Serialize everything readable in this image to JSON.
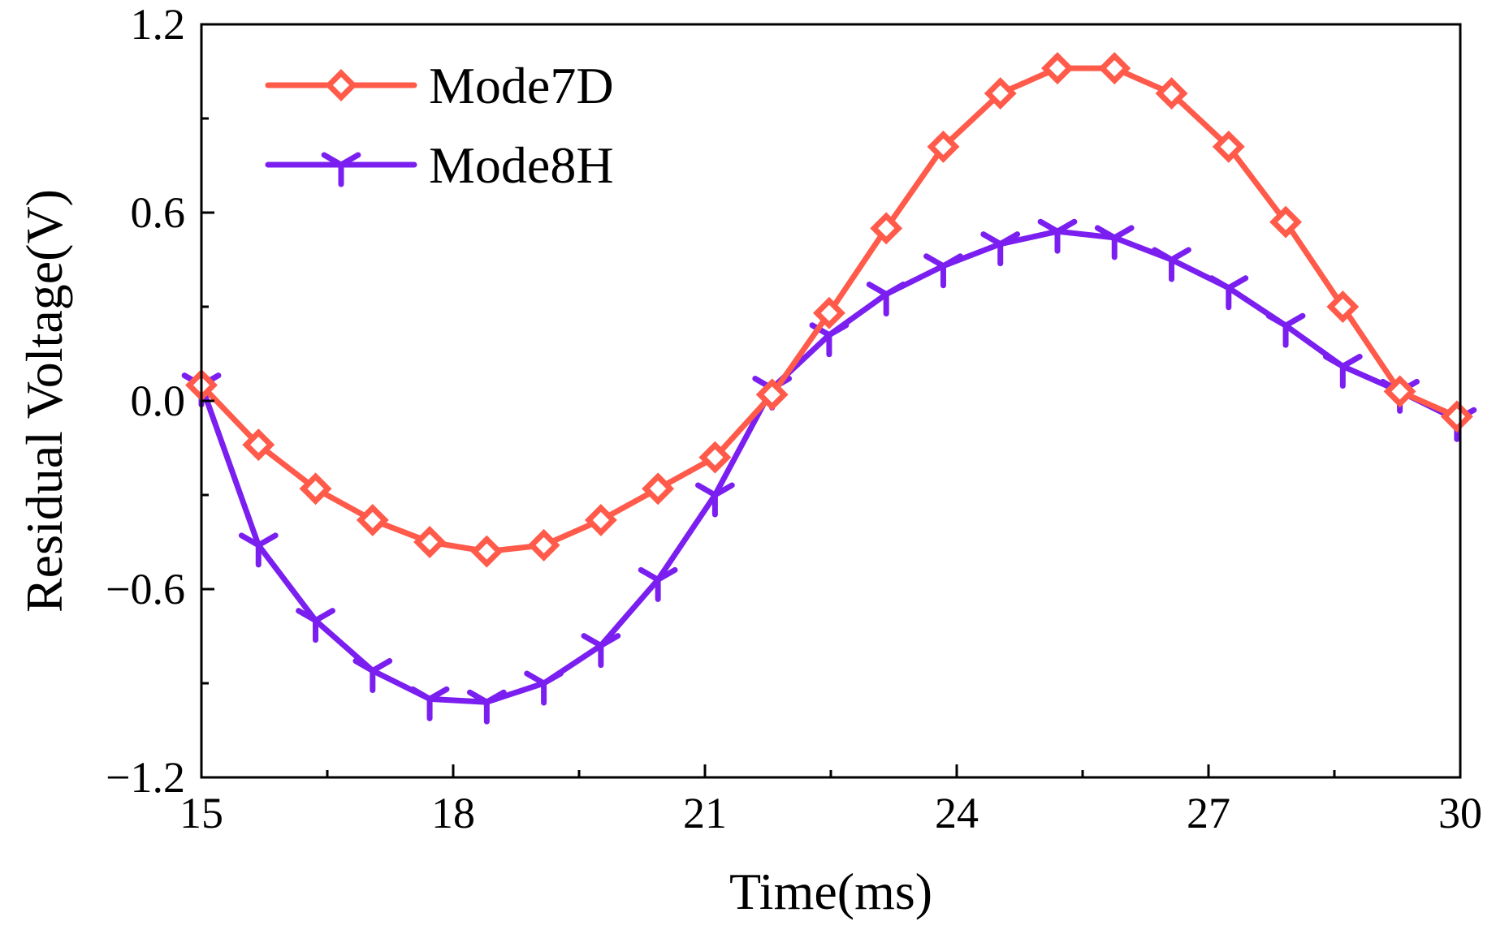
{
  "chart_data": {
    "type": "line",
    "title": "",
    "xlabel": "Time(ms)",
    "ylabel": "Residual Voltage(V)",
    "xlim": [
      15,
      30
    ],
    "ylim": [
      -1.2,
      1.2
    ],
    "xticks": [
      15,
      18,
      21,
      24,
      27,
      30
    ],
    "yticks": [
      -1.2,
      -0.6,
      0.0,
      0.6,
      1.2
    ],
    "xtick_labels": [
      "15",
      "18",
      "21",
      "24",
      "27",
      "30"
    ],
    "ytick_labels": [
      "−1.2",
      "−0.6",
      "0.0",
      "0.6",
      "1.2"
    ],
    "grid": false,
    "legend_position": "top-left",
    "series": [
      {
        "name": "Mode7D",
        "color": "#ff5a4a",
        "marker": "diamond",
        "x": [
          15.0,
          15.68,
          16.36,
          17.04,
          17.72,
          18.4,
          19.08,
          19.76,
          20.44,
          21.12,
          21.8,
          22.48,
          23.16,
          23.84,
          24.52,
          25.2,
          25.88,
          26.56,
          27.24,
          27.92,
          28.6,
          29.28,
          29.96
        ],
        "y": [
          0.05,
          -0.14,
          -0.28,
          -0.38,
          -0.45,
          -0.48,
          -0.46,
          -0.38,
          -0.28,
          -0.18,
          0.02,
          0.28,
          0.55,
          0.81,
          0.98,
          1.06,
          1.06,
          0.98,
          0.81,
          0.57,
          0.3,
          0.03,
          -0.05
        ]
      },
      {
        "name": "Mode8H",
        "color": "#7b1ff0",
        "marker": "tri_down",
        "x": [
          15.0,
          15.68,
          16.36,
          17.04,
          17.72,
          18.4,
          19.08,
          19.76,
          20.44,
          21.12,
          21.8,
          22.48,
          23.16,
          23.84,
          24.52,
          25.2,
          25.88,
          26.56,
          27.24,
          27.92,
          28.6,
          29.28,
          29.96
        ],
        "y": [
          0.05,
          -0.46,
          -0.7,
          -0.86,
          -0.95,
          -0.96,
          -0.9,
          -0.78,
          -0.57,
          -0.3,
          0.04,
          0.21,
          0.34,
          0.43,
          0.5,
          0.54,
          0.52,
          0.45,
          0.36,
          0.24,
          0.11,
          0.03,
          -0.06
        ]
      }
    ]
  }
}
